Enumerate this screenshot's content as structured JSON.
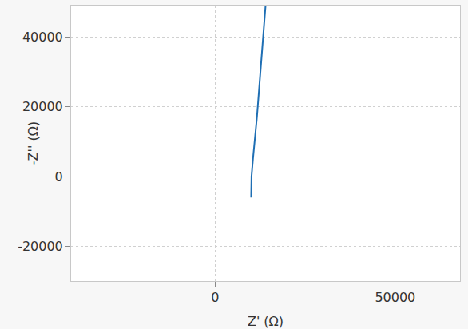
{
  "chart_data": {
    "type": "line",
    "x_label": "Z' (Ω)",
    "y_label": "-Z'' (Ω)",
    "x": [
      10000,
      10000,
      10100,
      10500,
      11000,
      11600,
      12200,
      12800,
      13400,
      14000
    ],
    "series": [
      {
        "color": "#1f6fb4",
        "values": [
          -6000,
          -2000,
          0,
          5000,
          10000,
          17000,
          25000,
          33000,
          41000,
          49000
        ]
      }
    ],
    "xlim": [
      -40000,
      68000
    ],
    "xticks": [
      0,
      50000
    ],
    "ylim": [
      -30000,
      49000
    ],
    "yticks": [
      -20000,
      0,
      20000,
      40000
    ],
    "grid": true
  }
}
